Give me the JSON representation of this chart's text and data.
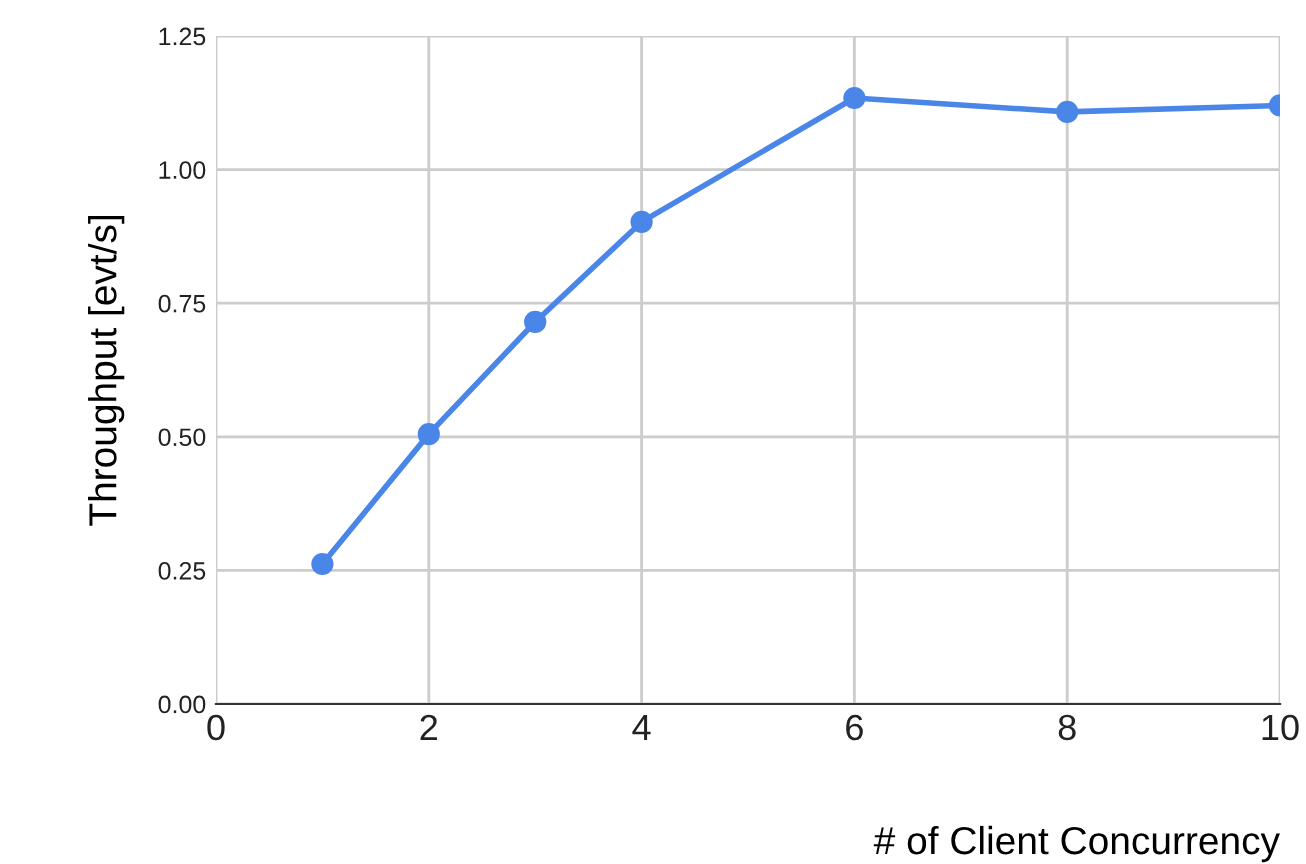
{
  "chart_data": {
    "type": "line",
    "x": [
      1,
      2,
      3,
      4,
      6,
      8,
      10
    ],
    "series": [
      {
        "color": "#4a86e8",
        "values": [
          0.262,
          0.505,
          0.715,
          0.902,
          1.134,
          1.108,
          1.12
        ]
      }
    ],
    "xlabel": "# of Client Concurrency",
    "ylabel": "Throughput [evt/s]",
    "xlim": [
      0,
      10
    ],
    "xticks": [
      0,
      2,
      4,
      6,
      8,
      10
    ],
    "ylim": [
      0,
      1.25
    ],
    "yticks": [
      {
        "value": 0,
        "label": "0.00"
      },
      {
        "value": 0.25,
        "label": "0.25"
      },
      {
        "value": 0.5,
        "label": "0.50"
      },
      {
        "value": 0.75,
        "label": "0.75"
      },
      {
        "value": 1.0,
        "label": "1.00"
      },
      {
        "value": 1.25,
        "label": "1.25"
      }
    ],
    "grid": true,
    "marker": "circle",
    "line_style": "solid"
  }
}
